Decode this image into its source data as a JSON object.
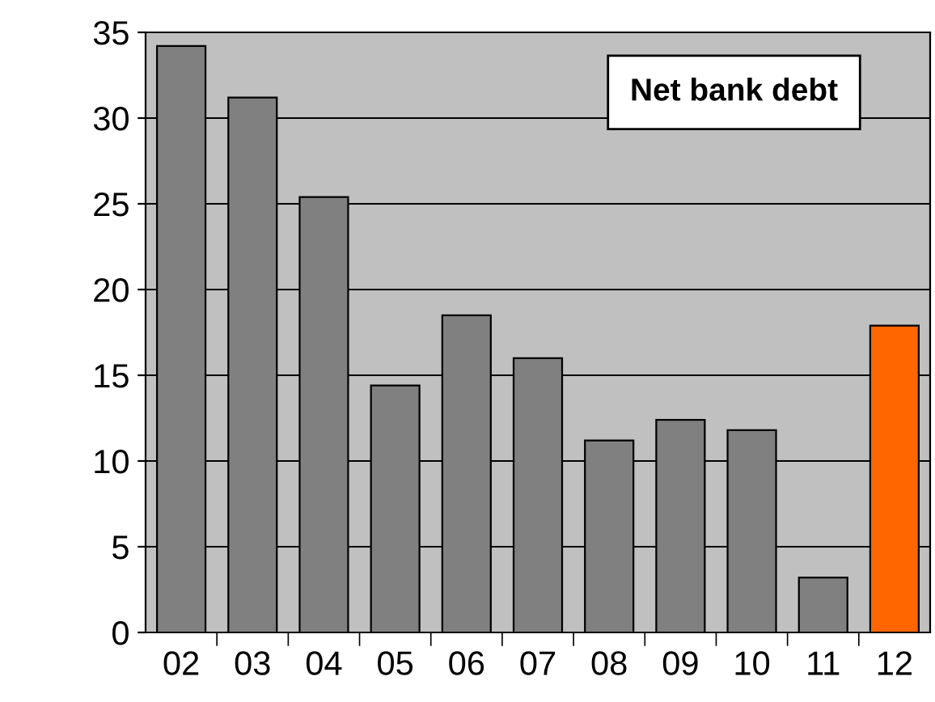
{
  "chart_data": {
    "type": "bar",
    "title": "Net bank debt",
    "categories": [
      "02",
      "03",
      "04",
      "05",
      "06",
      "07",
      "08",
      "09",
      "10",
      "11",
      "12"
    ],
    "values": [
      34.2,
      31.2,
      25.4,
      14.4,
      18.5,
      16.0,
      11.2,
      12.4,
      11.8,
      3.2,
      17.9
    ],
    "colors": [
      "#808080",
      "#808080",
      "#808080",
      "#808080",
      "#808080",
      "#808080",
      "#808080",
      "#808080",
      "#808080",
      "#808080",
      "#ff6600"
    ],
    "ylim": [
      0,
      35
    ],
    "yticks": [
      0,
      5,
      10,
      15,
      20,
      25,
      30,
      35
    ],
    "grid": "y",
    "legend": false
  }
}
